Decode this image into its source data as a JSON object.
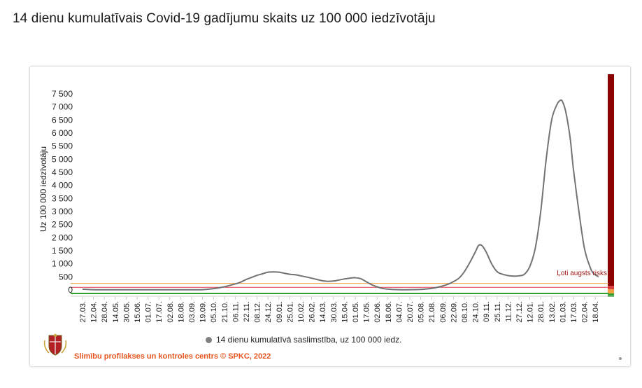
{
  "page": {
    "title": "14 dienu kumulatīvais Covid-19 gadījumu skaits uz 100 000 iedzīvotāju"
  },
  "footer": {
    "credit": "Slimību profilakses un kontroles centrs © SPKC, 2022"
  },
  "colors": {
    "line": "#737373",
    "legend_dot": "#808080",
    "risk_bar": "#8b0000",
    "risk_label": "#a01818",
    "credit": "#e8541e",
    "green": "#2fa12f",
    "red": "#d94040",
    "orange": "#f0a040"
  },
  "chart_data": {
    "type": "line",
    "title": "",
    "xlabel": "",
    "ylabel": "Uz 100 000 iedzīvotāju",
    "ylim": [
      0,
      7500
    ],
    "yticks": [
      0,
      500,
      1000,
      1500,
      2000,
      2500,
      3000,
      3500,
      4000,
      4500,
      5000,
      5500,
      6000,
      6500,
      7000,
      7500
    ],
    "ytick_labels": [
      "0",
      "500",
      "1 000",
      "1 500",
      "2 000",
      "2 500",
      "3 000",
      "3 500",
      "4 000",
      "4 500",
      "5 000",
      "5 500",
      "6 000",
      "6 500",
      "7 000",
      "7 500"
    ],
    "categories": [
      "27.03.",
      "12.04.",
      "28.04.",
      "14.05.",
      "30.05.",
      "15.06.",
      "01.07.",
      "17.07.",
      "02.08.",
      "18.08.",
      "03.09.",
      "19.09.",
      "05.10.",
      "21.10.",
      "06.11.",
      "22.11.",
      "08.12.",
      "24.12.",
      "09.01.",
      "25.01.",
      "10.02.",
      "26.02.",
      "14.03.",
      "30.03.",
      "15.04.",
      "01.05.",
      "17.05.",
      "02.06.",
      "18.06.",
      "04.07.",
      "20.07.",
      "05.08.",
      "21.08.",
      "06.09.",
      "22.09.",
      "08.10.",
      "24.10.",
      "09.11.",
      "25.11.",
      "11.12.",
      "27.12.",
      "12.01.",
      "28.01.",
      "13.02.",
      "01.03.",
      "17.03.",
      "02.04.",
      "18.04."
    ],
    "series": [
      {
        "name": "14 dienu kumulatīvā saslimstība, uz 100 000 iedz.",
        "x": [
          0,
          1,
          2,
          3,
          4,
          5,
          6,
          7,
          8,
          9,
          10,
          11,
          12,
          13,
          14,
          14.5,
          15,
          15.5,
          16,
          16.5,
          17,
          17.5,
          18,
          18.5,
          19,
          19.5,
          20,
          21,
          22,
          22.5,
          23,
          23.5,
          24,
          24.5,
          25,
          25.5,
          26,
          26.5,
          27,
          27.5,
          28,
          29,
          30,
          31,
          32,
          33,
          33.5,
          34,
          34.5,
          35,
          35.5,
          36,
          36.3,
          36.6,
          37,
          37.5,
          38,
          38.5,
          39,
          39.5,
          40,
          40.5,
          41,
          41.5,
          42,
          42.5,
          43,
          43.5,
          43.8,
          44,
          44.3,
          44.7,
          45,
          45.5,
          46,
          46.5,
          46.8,
          47.3
        ],
        "values": [
          30,
          10,
          5,
          5,
          5,
          5,
          5,
          5,
          5,
          5,
          5,
          10,
          50,
          120,
          230,
          300,
          400,
          480,
          560,
          620,
          680,
          690,
          680,
          640,
          600,
          580,
          540,
          450,
          350,
          330,
          340,
          380,
          420,
          450,
          470,
          430,
          320,
          200,
          120,
          60,
          30,
          10,
          10,
          20,
          60,
          150,
          220,
          320,
          450,
          700,
          1050,
          1450,
          1700,
          1700,
          1450,
          1000,
          700,
          600,
          550,
          530,
          540,
          600,
          900,
          1600,
          3000,
          5000,
          6500,
          7100,
          7250,
          7200,
          6800,
          5800,
          4600,
          3000,
          1600,
          900,
          650,
          500
        ]
      }
    ],
    "risk_label": "Ļoti augsts risks",
    "threshold_lines": [
      {
        "value": 0,
        "color": "#2fa12f"
      },
      {
        "value": 100,
        "color": "#d94040"
      },
      {
        "value": 250,
        "color": "#f0a040"
      }
    ],
    "grid": false,
    "legend_position": "bottom-center"
  }
}
